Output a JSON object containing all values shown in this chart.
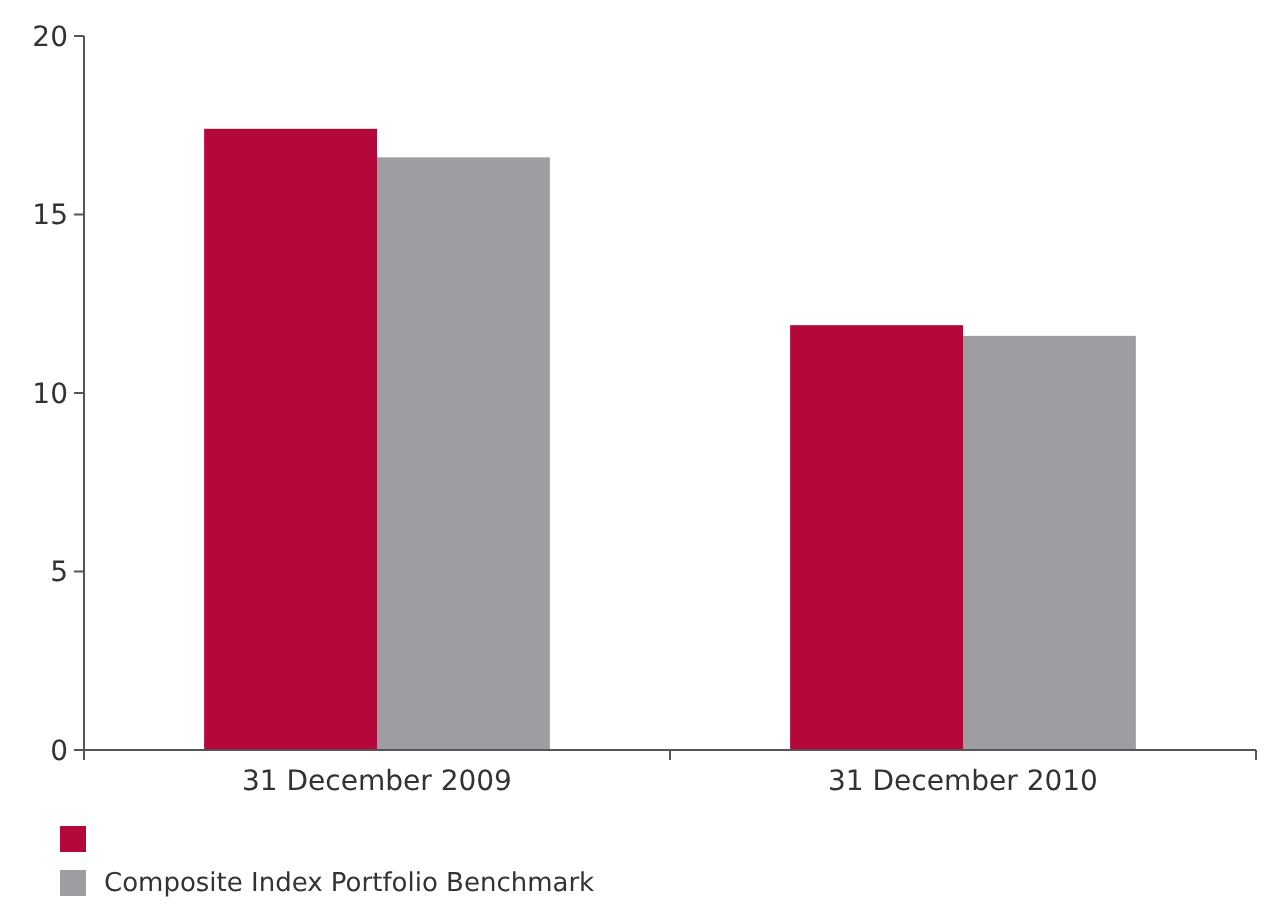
{
  "chart_data": {
    "type": "bar",
    "categories": [
      "31 December 2009",
      "31 December 2010"
    ],
    "series": [
      {
        "color": "#b5083a",
        "values": [
          17.4,
          11.9
        ]
      },
      {
        "name": "Composite Index Portfolio Benchmark",
        "color": "#9d9da2",
        "values": [
          16.6,
          11.6
        ]
      }
    ],
    "ylim": [
      0,
      20
    ],
    "yticks": [
      0,
      5,
      10,
      15,
      20
    ],
    "grid": false,
    "legend": "bottom left"
  }
}
